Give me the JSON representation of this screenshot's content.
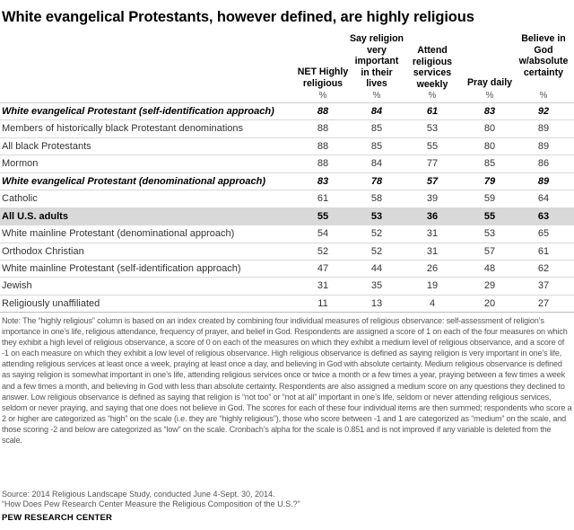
{
  "title": "White evangelical Protestants, however defined, are highly religious",
  "columns": [
    {
      "label": "NET Highly\nreligious",
      "unit": "%"
    },
    {
      "label": "Say religion\nvery\nimportant\nin their\nlives",
      "unit": "%"
    },
    {
      "label": "Attend\nreligious\nservices\nweekly",
      "unit": "%"
    },
    {
      "label": "Pray daily",
      "unit": "%"
    },
    {
      "label": "Believe in\nGod\nw/absolute\ncertainty",
      "unit": "%"
    }
  ],
  "rows": [
    {
      "label": "White evangelical Protestant (self-identification approach)",
      "style": "bold",
      "values": [
        "88",
        "84",
        "61",
        "83",
        "92"
      ]
    },
    {
      "label": "Members of historically black Protestant denominations",
      "style": "normal",
      "values": [
        "88",
        "85",
        "53",
        "80",
        "89"
      ]
    },
    {
      "label": "All black Protestants",
      "style": "normal",
      "values": [
        "88",
        "85",
        "55",
        "80",
        "89"
      ]
    },
    {
      "label": "Mormon",
      "style": "normal",
      "values": [
        "88",
        "84",
        "77",
        "85",
        "86"
      ]
    },
    {
      "label": "White evangelical Protestant (denominational approach)",
      "style": "bold",
      "values": [
        "83",
        "78",
        "57",
        "79",
        "89"
      ]
    },
    {
      "label": "Catholic",
      "style": "normal",
      "values": [
        "61",
        "58",
        "39",
        "59",
        "64"
      ]
    },
    {
      "label": "All U.S. adults",
      "style": "highlight",
      "values": [
        "55",
        "53",
        "36",
        "55",
        "63"
      ]
    },
    {
      "label": "White mainline Protestant (denominational approach)",
      "style": "normal",
      "values": [
        "54",
        "52",
        "31",
        "53",
        "65"
      ]
    },
    {
      "label": "Orthodox Christian",
      "style": "normal",
      "values": [
        "52",
        "52",
        "31",
        "57",
        "61"
      ]
    },
    {
      "label": "White mainline Protestant (self-identification approach)",
      "style": "normal",
      "values": [
        "47",
        "44",
        "26",
        "48",
        "62"
      ]
    },
    {
      "label": "Jewish",
      "style": "normal",
      "values": [
        "31",
        "35",
        "19",
        "29",
        "37"
      ]
    },
    {
      "label": "Religiously unaffiliated",
      "style": "normal",
      "values": [
        "11",
        "13",
        "4",
        "20",
        "27"
      ]
    }
  ],
  "note": "Note: The “highly religious” column is based on an index created by combining four individual measures of religious observance: self-assessment of religion’s importance in one’s life, religious attendance, frequency of prayer, and belief in God. Respondents are assigned a score of 1 on each of the four measures on which they exhibit a high level of religious observance, a score of 0 on each of the measures on which they exhibit a medium level of religious observance, and a score of -1 on each measure on which they exhibit a low level of religious observance. High religious observance is defined as saying religion is very important in one’s life, attending religious services at least once a week, praying at least once a day, and believing in God with absolute certainty. Medium religious observance is defined as saying religion is somewhat important in one’s life, attending religious services once or twice a month or a few times a year, praying between a few times a week and a few times a month, and believing in God with less than absolute certainty. Respondents are also assigned a medium score on any questions they declined to answer. Low religious observance is defined as saying that religion is “not too” or “not at all” important in one’s life, seldom or never attending religious services, seldom or never praying, and saying that one does not believe in God. The scores for each of these four individual items are then summed; respondents who score a 2 or higher are categorized as “high” on the scale (i.e. they are “highly religious”), those who score between -1 and 1 are categorized as “medium” on the scale, and those scoring -2 and below are categorized as “low” on the scale. Cronbach’s alpha for the scale is 0.851 and is not improved if any variable is deleted from the scale.",
  "source": "Source: 2014 Religious Landscape Study, conducted June 4-Sept. 30, 2014.",
  "quote": "“How Does Pew Research Center Measure the Religious Composition of the U.S.?”",
  "organization": "PEW RESEARCH CENTER"
}
